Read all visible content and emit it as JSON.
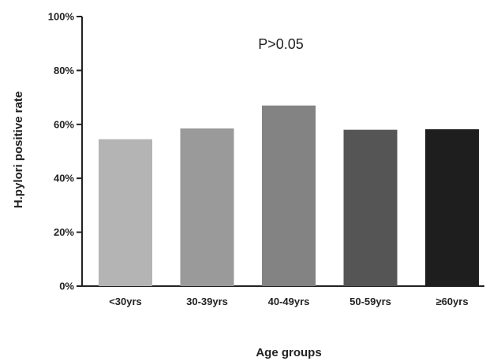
{
  "chart_data": {
    "type": "bar",
    "categories": [
      "<30yrs",
      "30-39yrs",
      "40-49yrs",
      "50-59yrs",
      "≥60yrs"
    ],
    "values": [
      54.5,
      58.5,
      67,
      58,
      58.2
    ],
    "bar_colors": [
      "#b4b4b4",
      "#9a9a9a",
      "#838383",
      "#555555",
      "#1e1e1e"
    ],
    "xlabel": "Age groups",
    "ylabel": "H.pylori positive rate",
    "ylim": [
      0,
      100
    ],
    "yticks": [
      0,
      20,
      40,
      60,
      80,
      100
    ],
    "ytick_labels": [
      "0%",
      "20%",
      "40%",
      "60%",
      "80%",
      "100%"
    ],
    "annotation": "P>0.05",
    "grid": false,
    "legend": false
  }
}
